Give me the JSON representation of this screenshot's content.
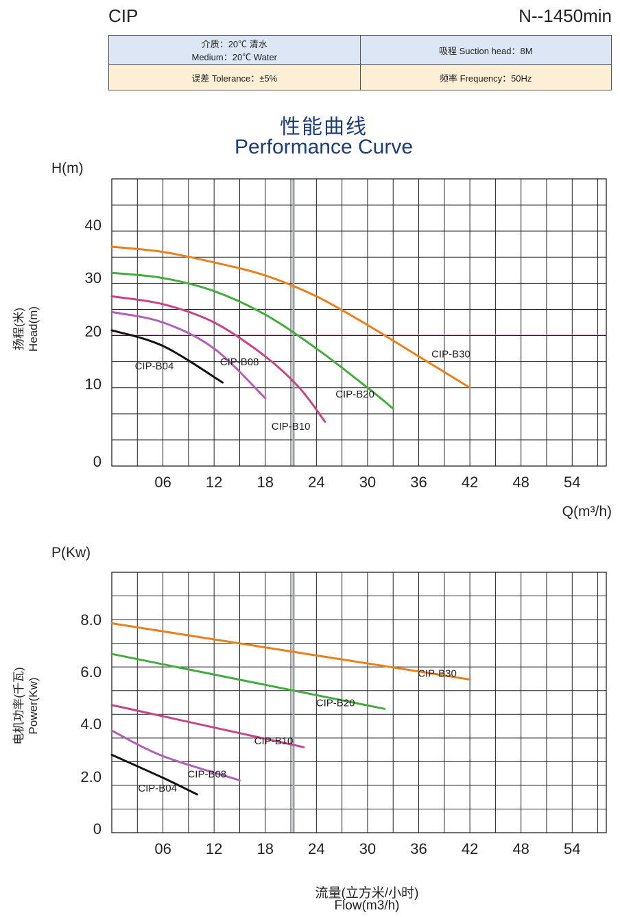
{
  "header": {
    "model": "CIP",
    "speed": "N--1450min"
  },
  "spec_table": {
    "medium_cn": "介质：20℃ 清水",
    "medium_en": "Medium：20℃ Water",
    "suction": "吸程 Suction head：8M",
    "tolerance": "误差  Tolerance：±5%",
    "frequency": "频率 Frequency：50Hz"
  },
  "title": {
    "cn": "性能曲线",
    "en": "Performance Curve"
  },
  "flow_label": {
    "cn": "流量(立方米/小时)",
    "en": "Flow(m3/h)"
  },
  "colors": {
    "B04": "#111111",
    "B08": "#b25fb5",
    "B10": "#c64585",
    "B20": "#43ab3f",
    "B30": "#e8811c",
    "grid": "#222222",
    "axis_text": "#222222"
  },
  "chart_data": [
    {
      "type": "line",
      "y_unit_label": "H(m)",
      "ylabel_cn": "扬程(米)",
      "ylabel_en": "Head(m)",
      "xlabel": "Q(m³/h)",
      "x_ticks": [
        "06",
        "12",
        "18",
        "24",
        "30",
        "36",
        "42",
        "48",
        "54"
      ],
      "y_ticks": [
        "0",
        "10",
        "20",
        "30",
        "40"
      ],
      "xlim": [
        0,
        58
      ],
      "ylim": [
        -5,
        50
      ],
      "grid": true,
      "series": [
        {
          "name": "CIP-B30",
          "color_key": "B30",
          "x": [
            0,
            6,
            12,
            18,
            24,
            30,
            36,
            42
          ],
          "y": [
            37,
            36,
            34,
            31.5,
            27.5,
            22,
            16,
            10
          ]
        },
        {
          "name": "CIP-B20",
          "color_key": "B20",
          "x": [
            0,
            6,
            12,
            18,
            24,
            30,
            33
          ],
          "y": [
            32,
            31,
            28.5,
            24,
            17.5,
            10,
            6
          ]
        },
        {
          "name": "CIP-B10",
          "color_key": "B10",
          "x": [
            0,
            6,
            12,
            18,
            22,
            25
          ],
          "y": [
            27.5,
            26,
            22.5,
            16,
            10,
            3.5
          ]
        },
        {
          "name": "CIP-B08",
          "color_key": "B08",
          "x": [
            0,
            6,
            12,
            18
          ],
          "y": [
            24.5,
            22.5,
            17.5,
            8
          ]
        },
        {
          "name": "CIP-B04",
          "color_key": "B04",
          "x": [
            0,
            6,
            13
          ],
          "y": [
            21,
            18,
            11
          ]
        }
      ]
    },
    {
      "type": "line",
      "y_unit_label": "P(Kw)",
      "ylabel_cn": "电机功率(千瓦)",
      "ylabel_en": "Power(Kw)",
      "x_ticks": [
        "06",
        "12",
        "18",
        "24",
        "30",
        "36",
        "42",
        "48",
        "54"
      ],
      "y_ticks": [
        "0",
        "2.0",
        "4.0",
        "6.0",
        "8.0"
      ],
      "xlim": [
        0,
        58
      ],
      "ylim": [
        0,
        10.2
      ],
      "grid": true,
      "series": [
        {
          "name": "CIP-B30",
          "color_key": "B30",
          "x": [
            0,
            42
          ],
          "y": [
            8.2,
            6
          ]
        },
        {
          "name": "CIP-B20",
          "color_key": "B20",
          "x": [
            0,
            32
          ],
          "y": [
            7,
            4.85
          ]
        },
        {
          "name": "CIP-B10",
          "color_key": "B10",
          "x": [
            0,
            22.5
          ],
          "y": [
            5,
            3.35
          ]
        },
        {
          "name": "CIP-B08",
          "color_key": "B08",
          "x": [
            0,
            6,
            15
          ],
          "y": [
            4,
            3,
            2.05
          ]
        },
        {
          "name": "CIP-B04",
          "color_key": "B04",
          "x": [
            0,
            6,
            10
          ],
          "y": [
            3.05,
            2.15,
            1.5
          ]
        }
      ]
    }
  ]
}
